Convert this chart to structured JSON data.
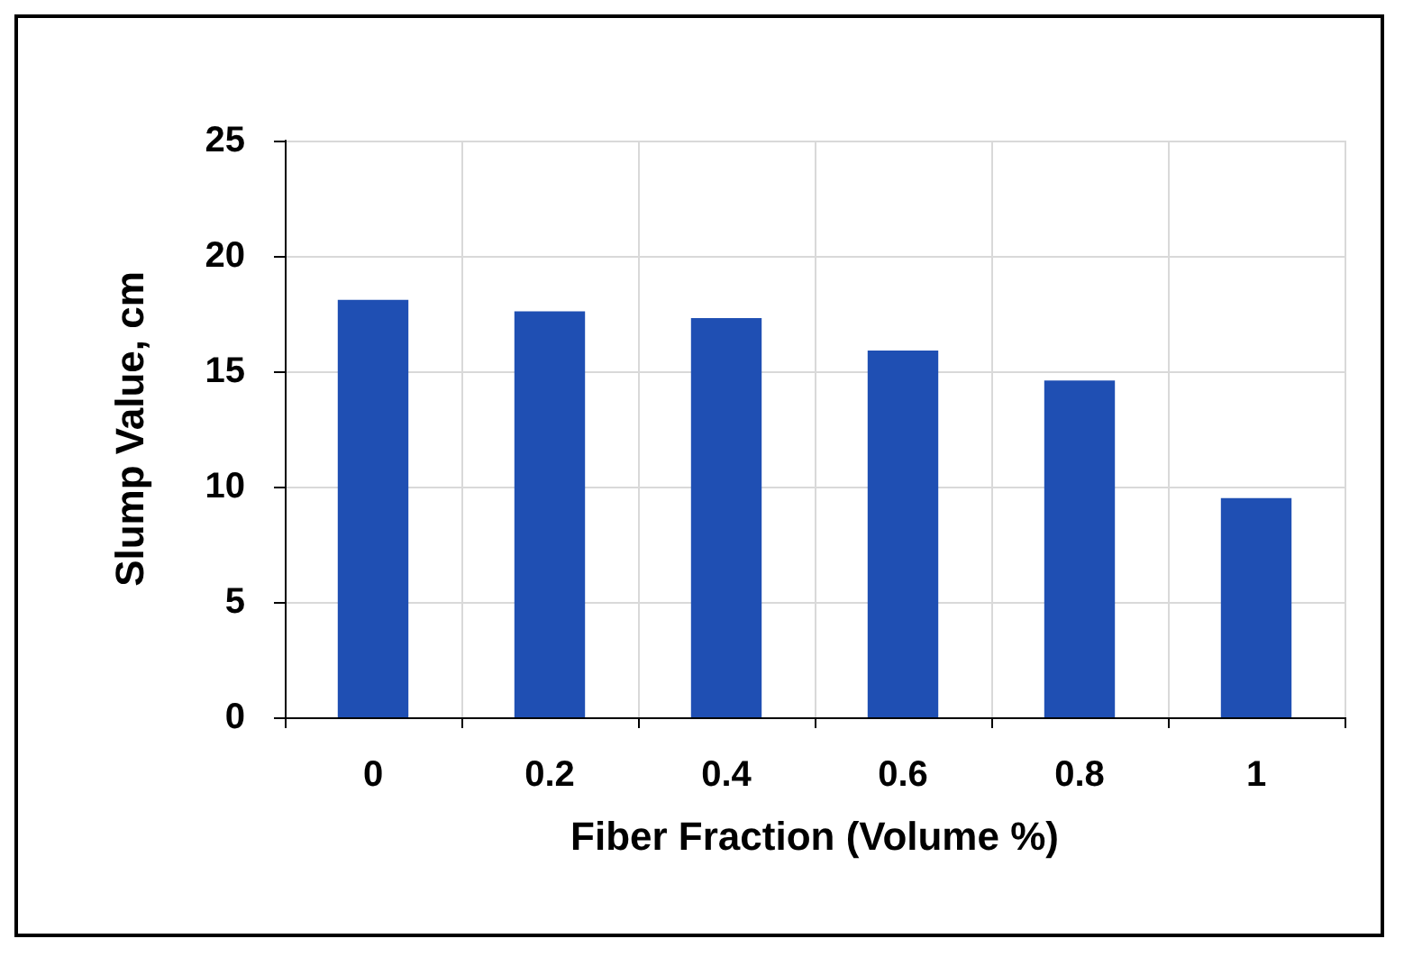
{
  "chart_data": {
    "type": "bar",
    "xlabel": "Fiber Fraction (Volume %)",
    "ylabel": "Slump Value, cm",
    "categories": [
      "0",
      "0.2",
      "0.4",
      "0.6",
      "0.8",
      "1"
    ],
    "values": [
      18.1,
      17.6,
      17.3,
      15.9,
      14.6,
      9.5
    ],
    "color": "#1f4fb3",
    "ylim": [
      0,
      25
    ],
    "yticks": [
      0,
      5,
      10,
      15,
      20,
      25
    ],
    "grid": true
  }
}
